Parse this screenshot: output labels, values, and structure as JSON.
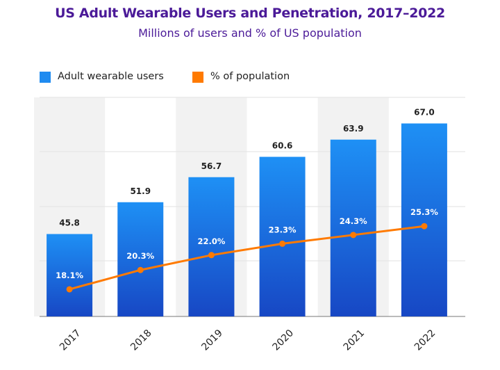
{
  "title": "US Adult Wearable Users and Penetration, 2017–2022",
  "subtitle": "Millions of users and % of US population",
  "legend": [
    {
      "label": "Adult wearable users",
      "color": "#1f8bf0"
    },
    {
      "label": "% of population",
      "color": "#ff7a00"
    }
  ],
  "chart_data": {
    "type": "bar",
    "categories": [
      "2017",
      "2018",
      "2019",
      "2020",
      "2021",
      "2022"
    ],
    "series": [
      {
        "name": "Adult wearable users",
        "type": "bar",
        "values": [
          45.8,
          51.9,
          56.7,
          60.6,
          63.9,
          67.0
        ],
        "labels": [
          "45.8",
          "51.9",
          "56.7",
          "60.6",
          "63.9",
          "67.0"
        ],
        "color": "#1f8bf0"
      },
      {
        "name": "% of population",
        "type": "line",
        "values": [
          18.1,
          20.3,
          22.0,
          23.3,
          24.3,
          25.3
        ],
        "labels": [
          "18.1%",
          "20.3%",
          "22.0%",
          "23.3%",
          "24.3%",
          "25.3%"
        ],
        "color": "#ff7a00"
      }
    ],
    "ylim": [
      30,
      72
    ],
    "grid": true,
    "legend_position": "top-left"
  }
}
